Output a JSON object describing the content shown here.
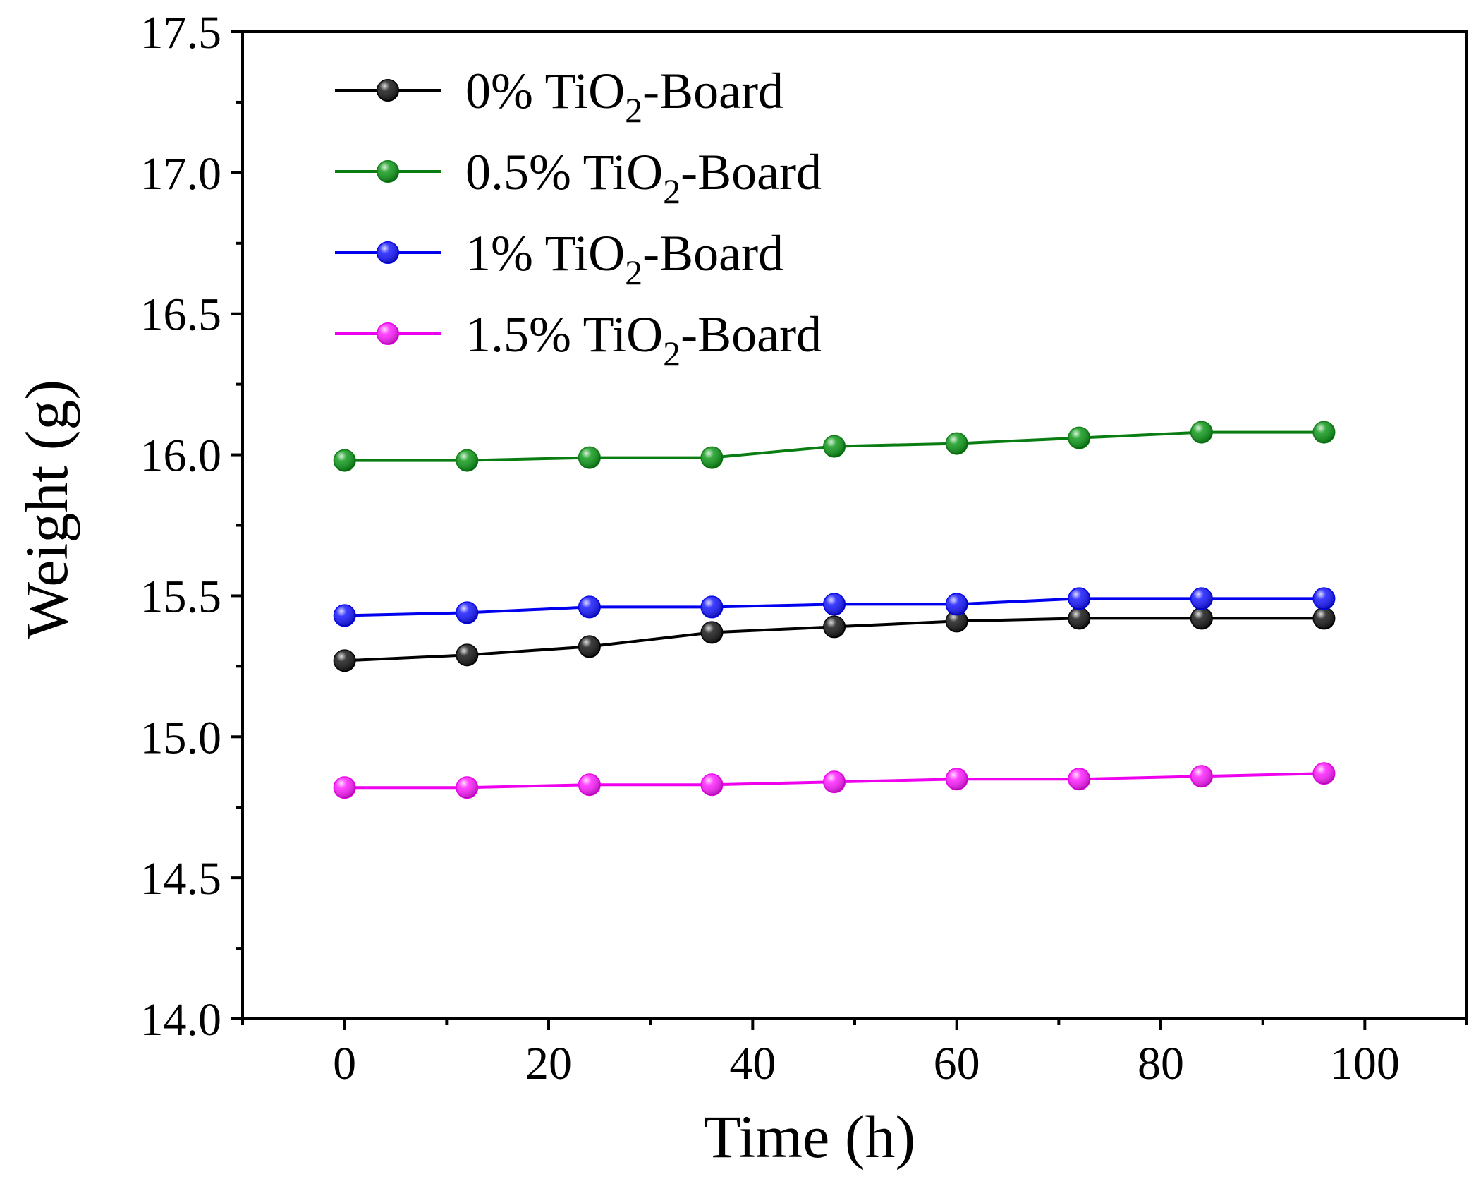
{
  "chart_data": {
    "type": "line",
    "title": "",
    "xlabel": "Time (h)",
    "ylabel": "Weight (g)",
    "xlim": [
      -10,
      110
    ],
    "ylim": [
      14.0,
      17.5
    ],
    "xticks": [
      0,
      20,
      40,
      60,
      80,
      100
    ],
    "xtick_labels": [
      "0",
      "20",
      "40",
      "60",
      "80",
      "100"
    ],
    "yticks": [
      14.0,
      14.5,
      15.0,
      15.5,
      16.0,
      16.5,
      17.0,
      17.5
    ],
    "ytick_labels": [
      "14.0",
      "14.5",
      "15.0",
      "15.5",
      "16.0",
      "16.5",
      "17.0",
      "17.5"
    ],
    "grid": false,
    "legend_position": "top-left",
    "x": [
      0,
      12,
      24,
      36,
      48,
      60,
      72,
      84,
      96
    ],
    "series": [
      {
        "name": "0% TiO2-Board",
        "legend": {
          "prefix": "0% TiO",
          "sub": "2",
          "suffix": "-Board"
        },
        "color": "#000000",
        "marker_color": "#1a1a1a",
        "values": [
          15.27,
          15.29,
          15.32,
          15.37,
          15.39,
          15.41,
          15.42,
          15.42,
          15.42
        ]
      },
      {
        "name": "0.5% TiO2-Board",
        "legend": {
          "prefix": "0.5% TiO",
          "sub": "2",
          "suffix": "-Board"
        },
        "color": "#0a7d12",
        "marker_color": "#119a1c",
        "values": [
          15.98,
          15.98,
          15.99,
          15.99,
          16.03,
          16.04,
          16.06,
          16.08,
          16.08
        ]
      },
      {
        "name": "1% TiO2-Board",
        "legend": {
          "prefix": "1% TiO",
          "sub": "2",
          "suffix": "-Board"
        },
        "color": "#0000ee",
        "marker_color": "#1a1aff",
        "values": [
          15.43,
          15.44,
          15.46,
          15.46,
          15.47,
          15.47,
          15.49,
          15.49,
          15.49
        ]
      },
      {
        "name": "1.5% TiO2-Board",
        "legend": {
          "prefix": "1.5% TiO",
          "sub": "2",
          "suffix": "-Board"
        },
        "color": "#ee00ee",
        "marker_color": "#ff22ff",
        "values": [
          14.82,
          14.82,
          14.83,
          14.83,
          14.84,
          14.85,
          14.85,
          14.86,
          14.87
        ]
      }
    ]
  }
}
